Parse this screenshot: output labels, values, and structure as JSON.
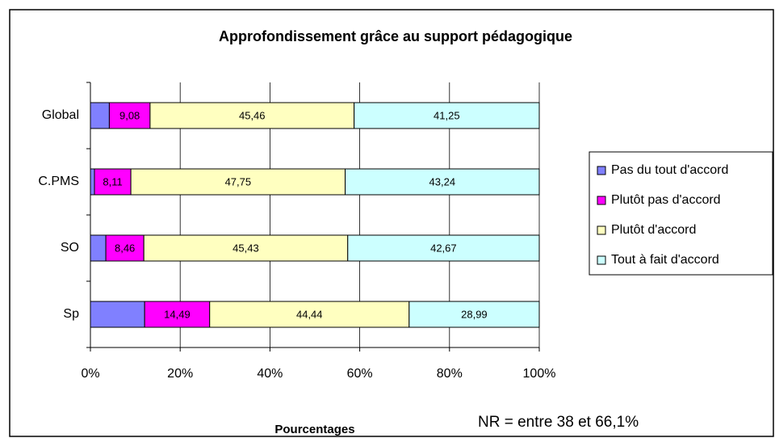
{
  "chart_data": {
    "type": "stacked_bar_horizontal",
    "title": "Approfondissement grâce au support pédagogique",
    "categories": [
      "Global",
      "C.PMS",
      "SO",
      "Sp"
    ],
    "series": [
      {
        "name": "Pas du tout d'accord",
        "color": "#8080ff",
        "values": [
          4.21,
          0.9,
          3.44,
          12.08
        ]
      },
      {
        "name": "Plutôt pas d'accord",
        "color": "#ff00ff",
        "values": [
          9.08,
          8.11,
          8.46,
          14.49
        ],
        "value_labels": [
          "9,08",
          "8,11",
          "8,46",
          "14,49"
        ]
      },
      {
        "name": "Plutôt d'accord",
        "color": "#ffffc0",
        "values": [
          45.46,
          47.75,
          45.43,
          44.44
        ],
        "value_labels": [
          "45,46",
          "47,75",
          "45,43",
          "44,44"
        ]
      },
      {
        "name": "Tout à fait d'accord",
        "color": "#ccffff",
        "values": [
          41.25,
          43.24,
          42.67,
          28.99
        ],
        "value_labels": [
          "41,25",
          "43,24",
          "42,67",
          "28,99"
        ]
      }
    ],
    "xlim": [
      0,
      100
    ],
    "xticks": [
      {
        "value": 0,
        "label": "0%"
      },
      {
        "value": 20,
        "label": "20%"
      },
      {
        "value": 40,
        "label": "40%"
      },
      {
        "value": 60,
        "label": "60%"
      },
      {
        "value": 80,
        "label": "80%"
      },
      {
        "value": 100,
        "label": "100%"
      }
    ],
    "x_label": "Pourcentages",
    "note": "NR = entre 38 et 66,1%",
    "grid": true,
    "legend": "right"
  }
}
